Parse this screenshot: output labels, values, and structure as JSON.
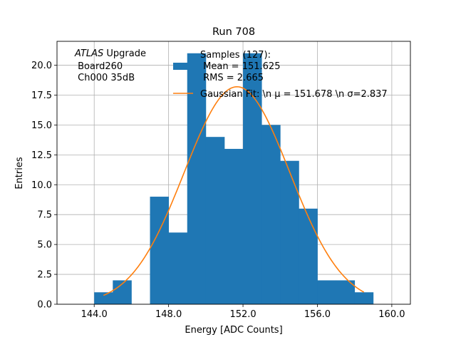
{
  "chart_data": {
    "type": "bar",
    "title": "Run 708",
    "xlabel": "Energy [ADC Counts]",
    "ylabel": "Entries",
    "xlim": [
      142.0,
      161.0
    ],
    "ylim": [
      0,
      22.0
    ],
    "xticks": [
      144.0,
      148.0,
      152.0,
      156.0,
      160.0
    ],
    "xtick_labels": [
      "144.0",
      "148.0",
      "152.0",
      "156.0",
      "160.0"
    ],
    "yticks": [
      0.0,
      2.5,
      5.0,
      7.5,
      10.0,
      12.5,
      15.0,
      17.5,
      20.0
    ],
    "ytick_labels": [
      "0.0",
      "2.5",
      "5.0",
      "7.5",
      "10.0",
      "12.5",
      "15.0",
      "17.5",
      "20.0"
    ],
    "grid": true,
    "bin_width": 1,
    "bins": [
      {
        "x": 144,
        "count": 1
      },
      {
        "x": 145,
        "count": 2
      },
      {
        "x": 146,
        "count": 0
      },
      {
        "x": 147,
        "count": 9
      },
      {
        "x": 148,
        "count": 6
      },
      {
        "x": 149,
        "count": 21
      },
      {
        "x": 150,
        "count": 14
      },
      {
        "x": 151,
        "count": 13
      },
      {
        "x": 152,
        "count": 21
      },
      {
        "x": 153,
        "count": 15
      },
      {
        "x": 154,
        "count": 12
      },
      {
        "x": 155,
        "count": 8
      },
      {
        "x": 156,
        "count": 2
      },
      {
        "x": 157,
        "count": 2
      },
      {
        "x": 158,
        "count": 1
      }
    ],
    "fit": {
      "type": "gaussian",
      "mu": 151.678,
      "sigma": 2.837,
      "peak": 18.2,
      "x_range": [
        144.5,
        158.5
      ]
    },
    "bar_color": "#1f77b4",
    "fit_color": "#ff7f0e",
    "legend": {
      "position": "top-right",
      "entries": [
        {
          "lines": [
            "Samples (127):",
            " Mean = 151.625",
            " RMS = 2.665"
          ]
        },
        {
          "lines": [
            "Gaussian Fit: \\n μ = 151.678 \\n σ=2.837"
          ]
        }
      ]
    },
    "annotation": {
      "italic": "ATLAS",
      "first_line_rest": " Upgrade",
      "lines": [
        " Board260",
        " Ch000 35dB"
      ]
    }
  }
}
